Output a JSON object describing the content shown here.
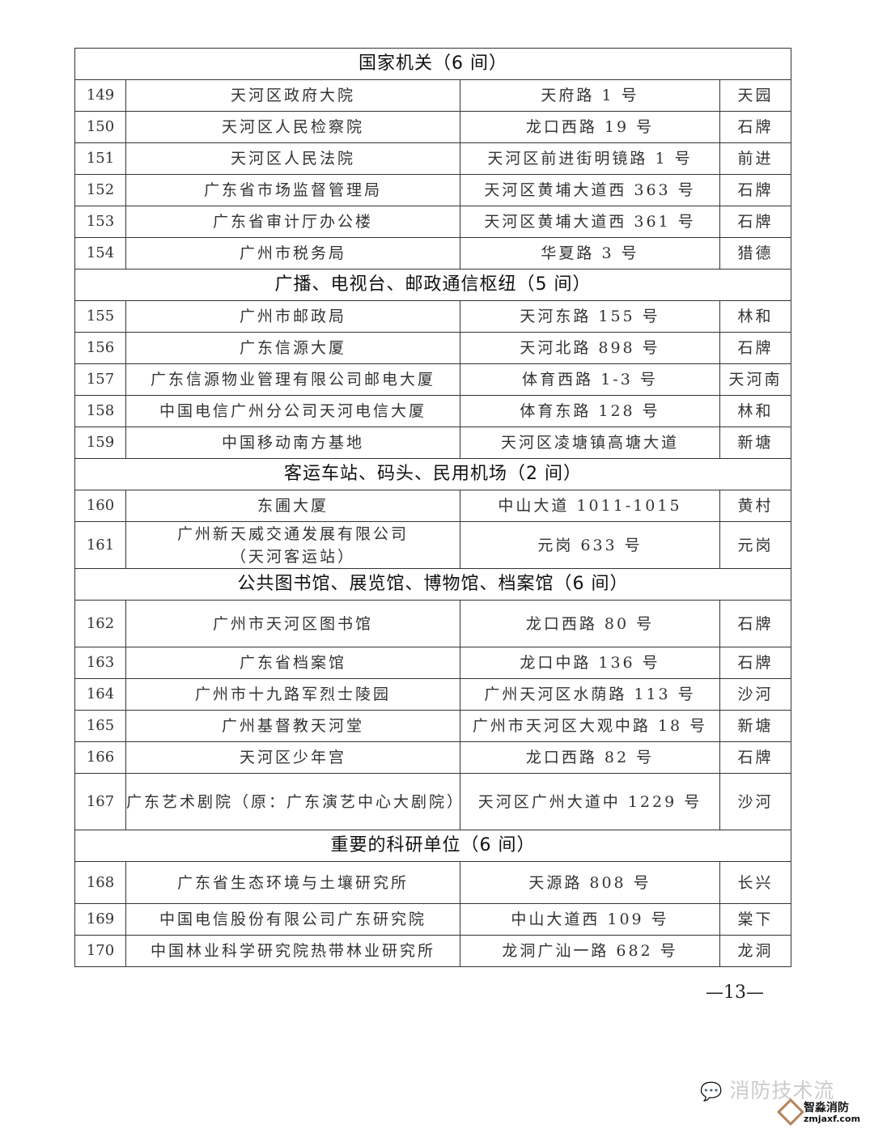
{
  "sections": [
    {
      "title": "国家机关（6 间）",
      "rows": [
        {
          "no": "149",
          "name": "天河区政府大院",
          "address": "天府路 1 号",
          "street": "天园"
        },
        {
          "no": "150",
          "name": "天河区人民检察院",
          "address": "龙口西路 19 号",
          "street": "石牌"
        },
        {
          "no": "151",
          "name": "天河区人民法院",
          "address": "天河区前进街明镜路 1 号",
          "street": "前进"
        },
        {
          "no": "152",
          "name": "广东省市场监督管理局",
          "address": "天河区黄埔大道西 363 号",
          "street": "石牌"
        },
        {
          "no": "153",
          "name": "广东省审计厅办公楼",
          "address": "天河区黄埔大道西 361 号",
          "street": "石牌"
        },
        {
          "no": "154",
          "name": "广州市税务局",
          "address": "华夏路 3 号",
          "street": "猎德"
        }
      ]
    },
    {
      "title": "广播、电视台、邮政通信枢纽（5 间）",
      "rows": [
        {
          "no": "155",
          "name": "广州市邮政局",
          "address": "天河东路 155 号",
          "street": "林和"
        },
        {
          "no": "156",
          "name": "广东信源大厦",
          "address": "天河北路 898 号",
          "street": "石牌"
        },
        {
          "no": "157",
          "name": "广东信源物业管理有限公司邮电大厦",
          "address": "体育西路 1-3 号",
          "street": "天河南"
        },
        {
          "no": "158",
          "name": "中国电信广州分公司天河电信大厦",
          "address": "体育东路 128 号",
          "street": "林和"
        },
        {
          "no": "159",
          "name": "中国移动南方基地",
          "address": "天河区凌塘镇高塘大道",
          "street": "新塘"
        }
      ]
    },
    {
      "title": "客运车站、码头、民用机场（2 间）",
      "rows": [
        {
          "no": "160",
          "name": "东圃大厦",
          "address": "中山大道 1011-1015",
          "street": "黄村"
        },
        {
          "no": "161",
          "name": "广州新天威交通发展有限公司",
          "name2": "（天河客运站）",
          "address": "元岗 633 号",
          "street": "元岗"
        }
      ]
    },
    {
      "title": "公共图书馆、展览馆、博物馆、档案馆（6 间）",
      "rows": [
        {
          "no": "162",
          "name": "广州市天河区图书馆",
          "address": "龙口西路 80 号",
          "street": "石牌"
        },
        {
          "no": "163",
          "name": "广东省档案馆",
          "address": "龙口中路 136 号",
          "street": "石牌"
        },
        {
          "no": "164",
          "name": "广州市十九路军烈士陵园",
          "address": "广州天河区水荫路 113 号",
          "street": "沙河"
        },
        {
          "no": "165",
          "name": "广州基督教天河堂",
          "address": "广州市天河区大观中路 18 号",
          "street": "新塘"
        },
        {
          "no": "166",
          "name": "天河区少年宫",
          "address": "龙口西路 82 号",
          "street": "石牌"
        },
        {
          "no": "167",
          "name": "广东艺术剧院（原：广东演艺中心大剧院）",
          "address": "天河区广州大道中 1229 号",
          "street": "沙河"
        }
      ]
    },
    {
      "title": "重要的科研单位（6 间）",
      "rows": [
        {
          "no": "168",
          "name": "广东省生态环境与土壤研究所",
          "address": "天源路 808 号",
          "street": "长兴"
        },
        {
          "no": "169",
          "name": "中国电信股份有限公司广东研究院",
          "address": "中山大道西 109 号",
          "street": "棠下"
        },
        {
          "no": "170",
          "name": "中国林业科学研究院热带林业研究所",
          "address": "龙洞广汕一路 682 号",
          "street": "龙洞"
        }
      ]
    }
  ],
  "page_number": "—13—",
  "watermark": {
    "text": "消防技术流",
    "icon": "wechat-icon"
  },
  "logo": {
    "name": "智淼消防",
    "site": "zmjaxf.com"
  }
}
